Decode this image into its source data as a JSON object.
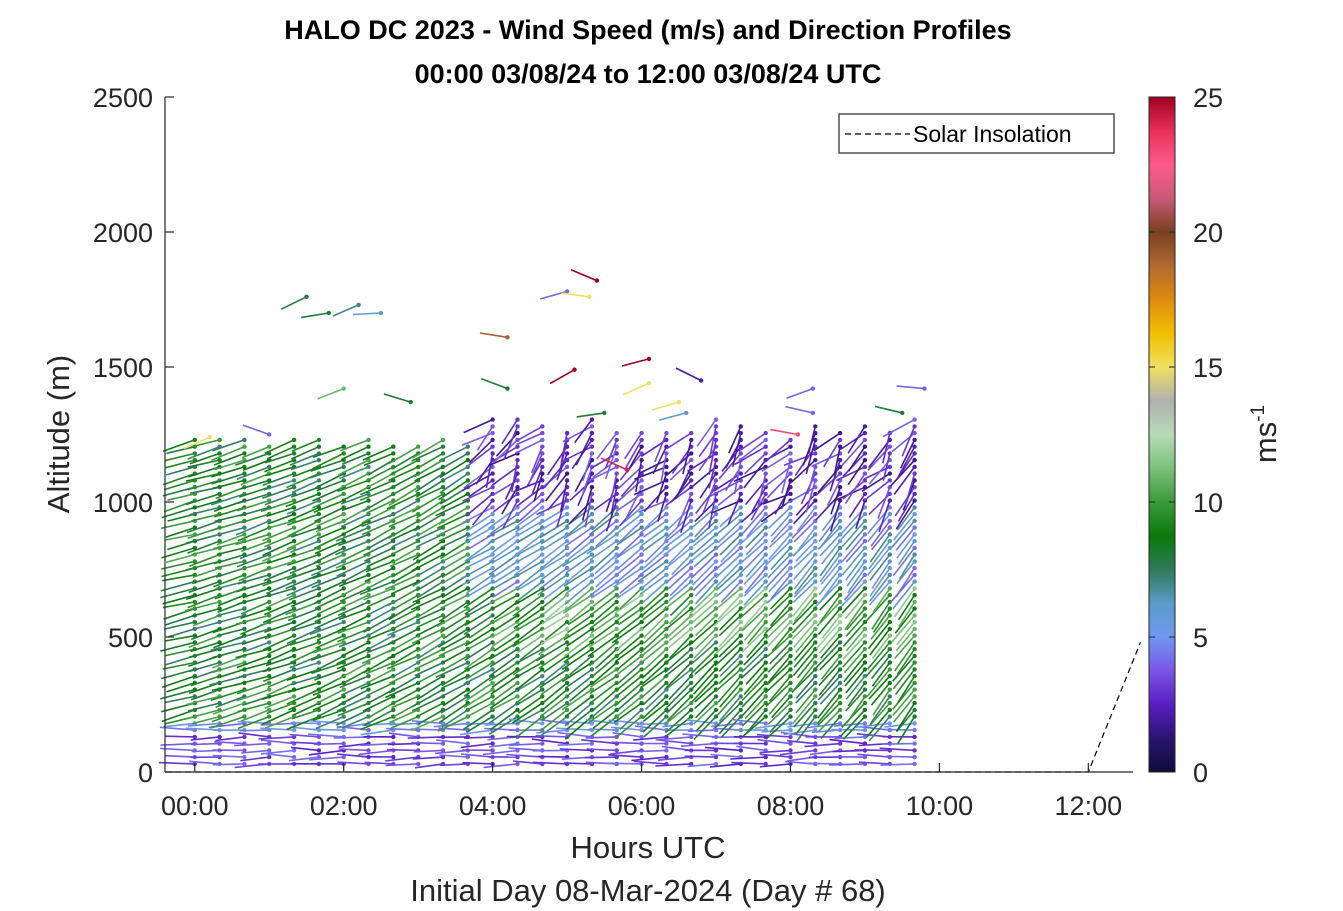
{
  "chart_data": {
    "type": "wind-barb",
    "title": "HALO DC 2023 - Wind Speed (m/s) and Direction Profiles",
    "subtitle": "00:00 03/08/24 to 12:00 03/08/24  UTC",
    "xlabel": "Hours UTC",
    "xlabel2": "Initial Day 08-Mar-2024 (Day # 68)",
    "ylabel": "Altitude (m)",
    "xlim": [
      -0.4,
      12.6
    ],
    "ylim": [
      0,
      2500
    ],
    "x_ticks": [
      0,
      2,
      4,
      6,
      8,
      10,
      12
    ],
    "x_tick_labels": [
      "00:00",
      "02:00",
      "04:00",
      "06:00",
      "08:00",
      "10:00",
      "12:00"
    ],
    "y_ticks": [
      0,
      500,
      1000,
      1500,
      2000,
      2500
    ],
    "y_tick_labels": [
      "0",
      "500",
      "1000",
      "1500",
      "2000",
      "2500"
    ],
    "colorbar": {
      "label": "ms",
      "label_exp": "-1",
      "min": 0,
      "max": 25,
      "ticks": [
        0,
        5,
        10,
        15,
        20,
        25
      ],
      "tick_labels": [
        "0",
        "5",
        "10",
        "15",
        "20",
        "25"
      ]
    },
    "legend": {
      "entries": [
        "Solar Insolation"
      ],
      "position": "top-right"
    },
    "solar_insolation": {
      "x": [
        -0.4,
        12.0,
        12.7
      ],
      "y": [
        0,
        0,
        480
      ]
    },
    "profiles_note": "Profiles every 20 min from 00:00 to 09:40 UTC, vertical spacing ~25 m up to ~1250 m, sparse returns above",
    "speed_structure": [
      {
        "alt_range": [
          0,
          200
        ],
        "speed": 3,
        "color_band": "purple/blue"
      },
      {
        "alt_range": [
          200,
          1000
        ],
        "speed": 9,
        "color_band": "green"
      },
      {
        "alt_range": [
          1000,
          1300
        ],
        "speed": 3,
        "color_band": "purple (after 04:00)"
      }
    ]
  },
  "colors": {
    "axis": "#262626",
    "colormap": [
      "#0d0d3a",
      "#2b1470",
      "#5a1ec2",
      "#7a55e8",
      "#6f98f0",
      "#5a9bc8",
      "#2f7b5a",
      "#0a7a0a",
      "#3a9a3a",
      "#7cc07c",
      "#b8dab8",
      "#b0b0b0",
      "#f0e060",
      "#f0c000",
      "#e08a10",
      "#b06a30",
      "#7a4020",
      "#c85a78",
      "#ff5a8a",
      "#e8305a",
      "#a00020"
    ]
  }
}
